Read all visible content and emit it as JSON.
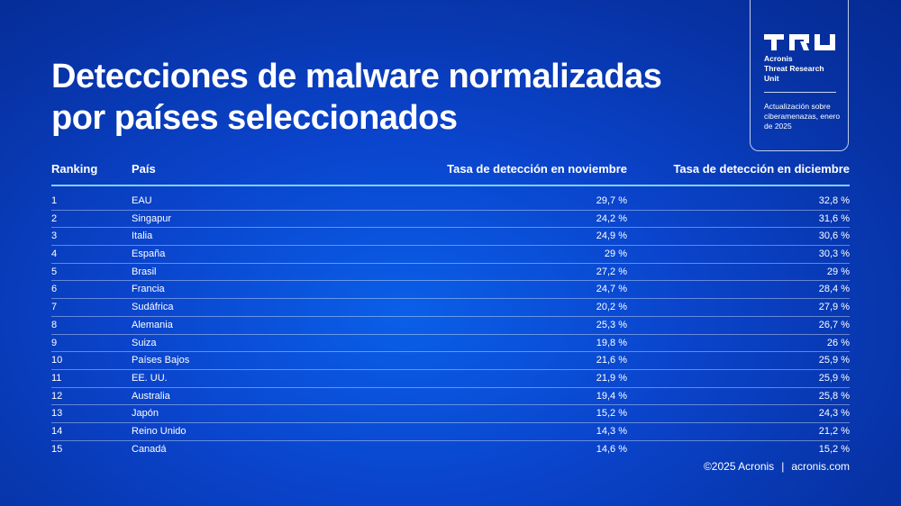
{
  "title": {
    "line1": "Detecciones de malware normalizadas",
    "line2": "por países seleccionados"
  },
  "badge": {
    "logo_icon": "tru-logo-icon",
    "org_line1": "Acronis",
    "org_line2": "Threat Research",
    "org_line3": "Unit",
    "note": "Actualización sobre ciberamenazas, enero de 2025"
  },
  "table": {
    "headers": {
      "ranking": "Ranking",
      "country": "País",
      "november": "Tasa de detección en noviembre",
      "december": "Tasa de detección en diciembre"
    },
    "rows": [
      {
        "rank": "1",
        "country": "EAU",
        "nov": "29,7 %",
        "dec": "32,8 %"
      },
      {
        "rank": "2",
        "country": "Singapur",
        "nov": "24,2 %",
        "dec": "31,6 %"
      },
      {
        "rank": "3",
        "country": "Italia",
        "nov": "24,9 %",
        "dec": "30,6 %"
      },
      {
        "rank": "4",
        "country": "España",
        "nov": "29 %",
        "dec": "30,3 %"
      },
      {
        "rank": "5",
        "country": "Brasil",
        "nov": "27,2 %",
        "dec": "29 %"
      },
      {
        "rank": "6",
        "country": "Francia",
        "nov": "24,7 %",
        "dec": "28,4 %"
      },
      {
        "rank": "7",
        "country": "Sudáfrica",
        "nov": "20,2 %",
        "dec": "27,9 %"
      },
      {
        "rank": "8",
        "country": "Alemania",
        "nov": "25,3 %",
        "dec": "26,7 %"
      },
      {
        "rank": "9",
        "country": "Suiza",
        "nov": "19,8 %",
        "dec": "26 %"
      },
      {
        "rank": "10",
        "country": "Países Bajos",
        "nov": "21,6 %",
        "dec": "25,9 %"
      },
      {
        "rank": "11",
        "country": "EE. UU.",
        "nov": "21,9 %",
        "dec": "25,9 %"
      },
      {
        "rank": "12",
        "country": "Australia",
        "nov": "19,4 %",
        "dec": "25,8 %"
      },
      {
        "rank": "13",
        "country": "Japón",
        "nov": "15,2 %",
        "dec": "24,3 %"
      },
      {
        "rank": "14",
        "country": "Reino Unido",
        "nov": "14,3 %",
        "dec": "21,2 %"
      },
      {
        "rank": "15",
        "country": "Canadá",
        "nov": "14,6 %",
        "dec": "15,2 %"
      }
    ]
  },
  "footer": {
    "copyright": "©2025 Acronis",
    "divider": "|",
    "site": "acronis.com"
  },
  "colors": {
    "background": "#0a44cc",
    "header_rule": "#7fd0ff",
    "text": "#ffffff"
  }
}
